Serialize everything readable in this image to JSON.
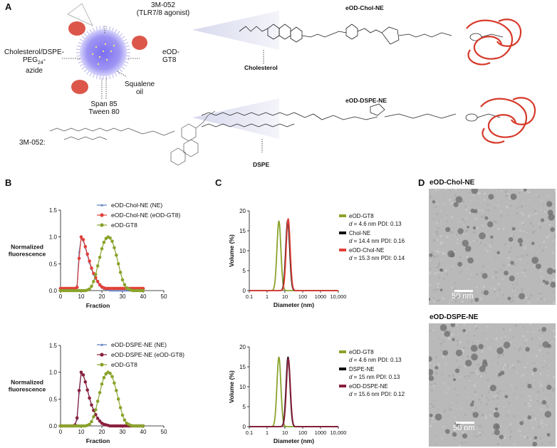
{
  "panels": {
    "A": {
      "letter": "A",
      "agonist_name": "3M-052",
      "agonist_desc": "(TLR7/8 agonist)",
      "lipid_label_1": "Cholesterol/DSPE-",
      "lipid_label_2": "PEG",
      "lipid_label_sub": "24",
      "lipid_label_3": "-",
      "lipid_label_4": "azide",
      "antigen_1": "eOD-",
      "antigen_2": "GT8",
      "oil_1": "Squalene",
      "oil_2": "oil",
      "surfactant_1": "Span 85",
      "surfactant_2": "Tween 80",
      "structure_label": "3M-052:",
      "chol_title": "eOD-Chol-NE",
      "chol_anchor": "Cholesterol",
      "dspe_title": "eOD-DSPE-NE",
      "dspe_anchor": "DSPE"
    },
    "B": {
      "letter": "B"
    },
    "C": {
      "letter": "C"
    },
    "D": {
      "letter": "D",
      "top_title": "eOD-Chol-NE",
      "bottom_title": "eOD-DSPE-NE",
      "scale_top": "50 nm",
      "scale_bottom": "50 nm"
    }
  },
  "colors": {
    "ne_blue": "#5b7fc0",
    "chol_red": "#e2403a",
    "dspe_maroon": "#8a1f3c",
    "eod_green": "#8aa32c",
    "black": "#111111",
    "protein_red": "#d63a2a",
    "particle_purple": "#6b5fe0"
  },
  "chart_data": [
    {
      "id": "B-top",
      "type": "line",
      "xlabel": "Fraction",
      "ylabel": "Normalized fluorescence",
      "xlim": [
        0,
        50
      ],
      "ylim": [
        0,
        1.5
      ],
      "xticks": [
        "0",
        "10",
        "20",
        "30",
        "40",
        "50"
      ],
      "yticks": [
        "0.0",
        "0.5",
        "1.0",
        "1.5"
      ],
      "legend": [
        "eOD-Chol-NE (NE)",
        "eOD-Chol-NE (eOD-GT8)",
        "eOD-GT8"
      ],
      "series": [
        {
          "name": "eOD-Chol-NE (NE)",
          "color": "#5b7fc0",
          "x": [
            0,
            1,
            2,
            3,
            4,
            5,
            6,
            7,
            8,
            9,
            10,
            11,
            12,
            13,
            14,
            15,
            16,
            17,
            18,
            19,
            20,
            21,
            22,
            23,
            24,
            25,
            26,
            27,
            28,
            29,
            30,
            31,
            32,
            33,
            34,
            35,
            36,
            37,
            38,
            39,
            40
          ],
          "y": [
            0,
            0,
            0,
            0,
            0,
            0,
            0,
            0.02,
            0.1,
            0.72,
            0.98,
            0.93,
            0.8,
            0.66,
            0.52,
            0.4,
            0.3,
            0.22,
            0.15,
            0.09,
            0.05,
            0.03,
            0.02,
            0.01,
            0,
            0,
            0,
            0,
            0,
            0,
            0,
            0,
            0,
            0,
            0,
            0,
            0,
            0,
            0,
            0,
            0
          ]
        },
        {
          "name": "eOD-Chol-NE (eOD-GT8)",
          "color": "#e2403a",
          "x": [
            0,
            1,
            2,
            3,
            4,
            5,
            6,
            7,
            8,
            9,
            10,
            11,
            12,
            13,
            14,
            15,
            16,
            17,
            18,
            19,
            20,
            21,
            22,
            23,
            24,
            25,
            26,
            27,
            28,
            29,
            30,
            31,
            32,
            33,
            34,
            35,
            36,
            37,
            38,
            39,
            40
          ],
          "y": [
            0.04,
            0.04,
            0.04,
            0.04,
            0.04,
            0.04,
            0.04,
            0.04,
            0.06,
            0.6,
            1.0,
            0.95,
            0.82,
            0.68,
            0.55,
            0.42,
            0.32,
            0.24,
            0.17,
            0.11,
            0.07,
            0.05,
            0.04,
            0.04,
            0.04,
            0.04,
            0.04,
            0.04,
            0.04,
            0.04,
            0.04,
            0.04,
            0.04,
            0.04,
            0.04,
            0.04,
            0.04,
            0.04,
            0.04,
            0.04,
            0.04
          ]
        },
        {
          "name": "eOD-GT8",
          "color": "#8aa32c",
          "x": [
            0,
            1,
            2,
            3,
            4,
            5,
            6,
            7,
            8,
            9,
            10,
            11,
            12,
            13,
            14,
            15,
            16,
            17,
            18,
            19,
            20,
            21,
            22,
            23,
            24,
            25,
            26,
            27,
            28,
            29,
            30,
            31,
            32,
            33,
            34,
            35,
            36,
            37,
            38,
            39,
            40
          ],
          "y": [
            0,
            0,
            0,
            0,
            0,
            0,
            0,
            0,
            0,
            0,
            0,
            0,
            0,
            0.01,
            0.03,
            0.08,
            0.17,
            0.3,
            0.46,
            0.62,
            0.78,
            0.9,
            0.97,
            1.0,
            0.98,
            0.92,
            0.8,
            0.66,
            0.5,
            0.34,
            0.2,
            0.11,
            0.05,
            0.03,
            0.01,
            0,
            0,
            0,
            0,
            0,
            0
          ]
        }
      ]
    },
    {
      "id": "B-bottom",
      "type": "line",
      "xlabel": "Fraction",
      "ylabel": "Normalized fluorescence",
      "xlim": [
        0,
        50
      ],
      "ylim": [
        0,
        1.5
      ],
      "xticks": [
        "0",
        "10",
        "20",
        "30",
        "40",
        "50"
      ],
      "yticks": [
        "0.0",
        "0.5",
        "1.0",
        "1.5"
      ],
      "legend": [
        "eOD-DSPE-NE (NE)",
        "eOD-DSPE-NE (eOD-GT8)",
        "eOD-GT8"
      ],
      "series": [
        {
          "name": "eOD-DSPE-NE (NE)",
          "color": "#5b7fc0",
          "x": [
            0,
            1,
            2,
            3,
            4,
            5,
            6,
            7,
            8,
            9,
            10,
            11,
            12,
            13,
            14,
            15,
            16,
            17,
            18,
            19,
            20,
            21,
            22,
            23,
            24,
            25,
            26,
            27,
            28,
            29,
            30,
            31,
            32,
            33,
            34,
            35,
            36,
            37,
            38,
            39,
            40
          ],
          "y": [
            0,
            0,
            0,
            0,
            0,
            0,
            0,
            0.02,
            0.12,
            0.62,
            0.98,
            0.95,
            0.83,
            0.68,
            0.53,
            0.4,
            0.3,
            0.22,
            0.15,
            0.1,
            0.06,
            0.03,
            0.02,
            0.01,
            0,
            0,
            0,
            0,
            0,
            0,
            0,
            0,
            0,
            0,
            0,
            0,
            0,
            0,
            0,
            0,
            0
          ]
        },
        {
          "name": "eOD-DSPE-NE (eOD-GT8)",
          "color": "#8a1f3c",
          "x": [
            0,
            1,
            2,
            3,
            4,
            5,
            6,
            7,
            8,
            9,
            10,
            11,
            12,
            13,
            14,
            15,
            16,
            17,
            18,
            19,
            20,
            21,
            22,
            23,
            24,
            25,
            26,
            27,
            28,
            29,
            30,
            31,
            32,
            33,
            34,
            35,
            36,
            37,
            38,
            39,
            40
          ],
          "y": [
            0,
            0,
            0,
            0,
            0,
            0,
            0,
            0.02,
            0.15,
            0.66,
            1.0,
            0.95,
            0.82,
            0.67,
            0.52,
            0.39,
            0.29,
            0.21,
            0.14,
            0.09,
            0.05,
            0.03,
            0.02,
            0.01,
            0,
            0,
            0,
            0,
            0,
            0,
            0,
            0,
            0,
            0,
            0,
            0,
            0,
            0,
            0,
            0,
            0
          ]
        },
        {
          "name": "eOD-GT8",
          "color": "#8aa32c",
          "x": [
            0,
            1,
            2,
            3,
            4,
            5,
            6,
            7,
            8,
            9,
            10,
            11,
            12,
            13,
            14,
            15,
            16,
            17,
            18,
            19,
            20,
            21,
            22,
            23,
            24,
            25,
            26,
            27,
            28,
            29,
            30,
            31,
            32,
            33,
            34,
            35,
            36,
            37,
            38,
            39,
            40
          ],
          "y": [
            0,
            0,
            0,
            0,
            0,
            0,
            0,
            0,
            0,
            0,
            0,
            0,
            0,
            0.01,
            0.03,
            0.08,
            0.17,
            0.3,
            0.46,
            0.62,
            0.78,
            0.9,
            0.97,
            1.0,
            0.98,
            0.92,
            0.8,
            0.66,
            0.5,
            0.34,
            0.2,
            0.11,
            0.05,
            0.03,
            0.01,
            0,
            0,
            0,
            0,
            0,
            0
          ]
        }
      ]
    },
    {
      "id": "C-top",
      "type": "line",
      "xlabel": "Diameter (nm)",
      "ylabel": "Volume (%)",
      "xscale": "log",
      "xlim": [
        0.1,
        10000
      ],
      "ylim": [
        0,
        20
      ],
      "xticks": [
        "0.1",
        "1",
        "10",
        "100",
        "1000",
        "10,000"
      ],
      "yticks": [
        "0",
        "5",
        "10",
        "15",
        "20"
      ],
      "legend": [
        {
          "name": "eOD-GT8",
          "stats_prefix": "d",
          "stats": " = 4.6 nm PDI: 0.13"
        },
        {
          "name": "Chol-NE",
          "stats_prefix": "d",
          "stats": " = 14.4 nm PDI: 0.16"
        },
        {
          "name": "eOD-Chol-NE",
          "stats_prefix": "d",
          "stats": " = 15.3 nm PDI: 0.14"
        }
      ],
      "series": [
        {
          "name": "eOD-GT8",
          "color": "#8aa32c",
          "peak_x": 4.6,
          "peak_y": 17.4,
          "log_sigma": 0.11
        },
        {
          "name": "Chol-NE",
          "color": "#111111",
          "peak_x": 14.4,
          "peak_y": 17.6,
          "log_sigma": 0.11
        },
        {
          "name": "eOD-Chol-NE",
          "color": "#e2403a",
          "peak_x": 15.3,
          "peak_y": 18.0,
          "log_sigma": 0.11
        }
      ]
    },
    {
      "id": "C-bottom",
      "type": "line",
      "xlabel": "Diameter (nm)",
      "ylabel": "Volume (%)",
      "xscale": "log",
      "xlim": [
        0.1,
        10000
      ],
      "ylim": [
        0,
        20
      ],
      "xticks": [
        "0.1",
        "1",
        "10",
        "100",
        "1000",
        "10,000"
      ],
      "yticks": [
        "0",
        "5",
        "10",
        "15",
        "20"
      ],
      "legend": [
        {
          "name": "eOD-GT8",
          "stats_prefix": "d",
          "stats": " = 4.6 nm PDI: 0.13"
        },
        {
          "name": "DSPE-NE",
          "stats_prefix": "d",
          "stats": " = 15 nm PDI: 0.13"
        },
        {
          "name": "eOD-DSPE-NE",
          "stats_prefix": "d",
          "stats": " = 15.6 nm PDI: 0.12"
        }
      ],
      "series": [
        {
          "name": "eOD-GT8",
          "color": "#8aa32c",
          "peak_x": 4.6,
          "peak_y": 17.4,
          "log_sigma": 0.11
        },
        {
          "name": "DSPE-NE",
          "color": "#111111",
          "peak_x": 15.0,
          "peak_y": 17.4,
          "log_sigma": 0.11
        },
        {
          "name": "eOD-DSPE-NE",
          "color": "#8a1f3c",
          "peak_x": 15.6,
          "peak_y": 17.0,
          "log_sigma": 0.11
        }
      ]
    }
  ]
}
